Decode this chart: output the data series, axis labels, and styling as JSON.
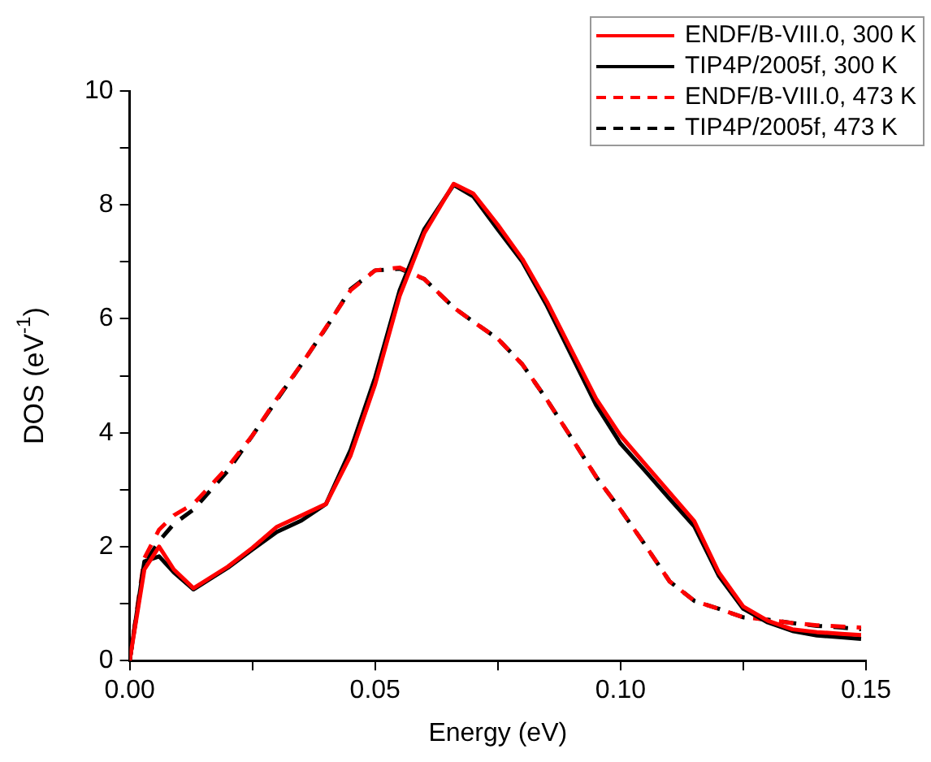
{
  "chart_data": {
    "type": "line",
    "xlabel": "Energy (eV)",
    "ylabel": "DOS (eV$^{-1}$)",
    "xlim": [
      0,
      0.15
    ],
    "xticks": [
      {
        "value": 0,
        "label": "0.00"
      },
      {
        "value": 0.025,
        "label": null
      },
      {
        "value": 0.05,
        "label": "0.05"
      },
      {
        "value": 0.075,
        "label": null
      },
      {
        "value": 0.1,
        "label": "0.10"
      },
      {
        "value": 0.125,
        "label": null
      },
      {
        "value": 0.15,
        "label": "0.15"
      }
    ],
    "ylim": [
      0,
      10
    ],
    "yticks": [
      0,
      {
        "value": 1,
        "label": null
      },
      2,
      {
        "value": 3,
        "label": null
      },
      4,
      {
        "value": 5,
        "label": null
      },
      6,
      {
        "value": 7,
        "label": null
      },
      8,
      {
        "value": 9,
        "label": null
      },
      10
    ],
    "grid": false,
    "legend": "top right",
    "marker": "none",
    "x": [
      0,
      0.003,
      0.006,
      0.009,
      0.013,
      0.02,
      0.025,
      0.03,
      0.035,
      0.04,
      0.045,
      0.05,
      0.055,
      0.06,
      0.066,
      0.07,
      0.075,
      0.08,
      0.085,
      0.09,
      0.095,
      0.1,
      0.105,
      0.11,
      0.115,
      0.12,
      0.125,
      0.13,
      0.135,
      0.14,
      0.145,
      0.149
    ],
    "series": [
      {
        "name": "ENDF/B-VIII.0, 300 K",
        "color": "#ff0000",
        "line_style": "solid",
        "values": [
          0,
          1.6,
          2.0,
          1.6,
          1.27,
          1.65,
          1.98,
          2.35,
          2.55,
          2.75,
          3.6,
          4.85,
          6.4,
          7.5,
          8.37,
          8.2,
          7.65,
          7.05,
          6.3,
          5.45,
          4.6,
          3.95,
          3.45,
          2.95,
          2.45,
          1.55,
          0.95,
          0.7,
          0.55,
          0.5,
          0.47,
          0.45
        ]
      },
      {
        "name": "TIP4P/2005f, 300 K",
        "color": "#000000",
        "line_style": "solid",
        "values": [
          0,
          1.74,
          1.83,
          1.55,
          1.25,
          1.63,
          1.95,
          2.26,
          2.46,
          2.75,
          3.7,
          4.97,
          6.5,
          7.57,
          8.35,
          8.15,
          7.57,
          7.0,
          6.23,
          5.36,
          4.49,
          3.81,
          3.33,
          2.84,
          2.36,
          1.49,
          0.91,
          0.67,
          0.52,
          0.44,
          0.41,
          0.38
        ]
      },
      {
        "name": "ENDF/B-VIII.0, 473 K",
        "color": "#ff0000",
        "line_style": "dashed",
        "values": [
          0,
          1.8,
          2.3,
          2.55,
          2.75,
          3.4,
          3.95,
          4.6,
          5.2,
          5.85,
          6.5,
          6.85,
          6.9,
          6.7,
          6.2,
          5.95,
          5.65,
          5.2,
          4.58,
          3.91,
          3.23,
          2.65,
          2.03,
          1.39,
          1.05,
          0.91,
          0.76,
          0.72,
          0.66,
          0.62,
          0.6,
          0.58
        ]
      },
      {
        "name": "TIP4P/2005f, 473 K",
        "color": "#000000",
        "line_style": "dashed",
        "values": [
          0,
          1.7,
          2.1,
          2.4,
          2.65,
          3.33,
          3.95,
          4.58,
          5.2,
          5.84,
          6.52,
          6.85,
          6.88,
          6.7,
          6.2,
          5.95,
          5.65,
          5.2,
          4.58,
          3.91,
          3.23,
          2.65,
          2.03,
          1.39,
          1.05,
          0.91,
          0.76,
          0.72,
          0.66,
          0.61,
          0.58,
          0.55
        ]
      }
    ]
  }
}
